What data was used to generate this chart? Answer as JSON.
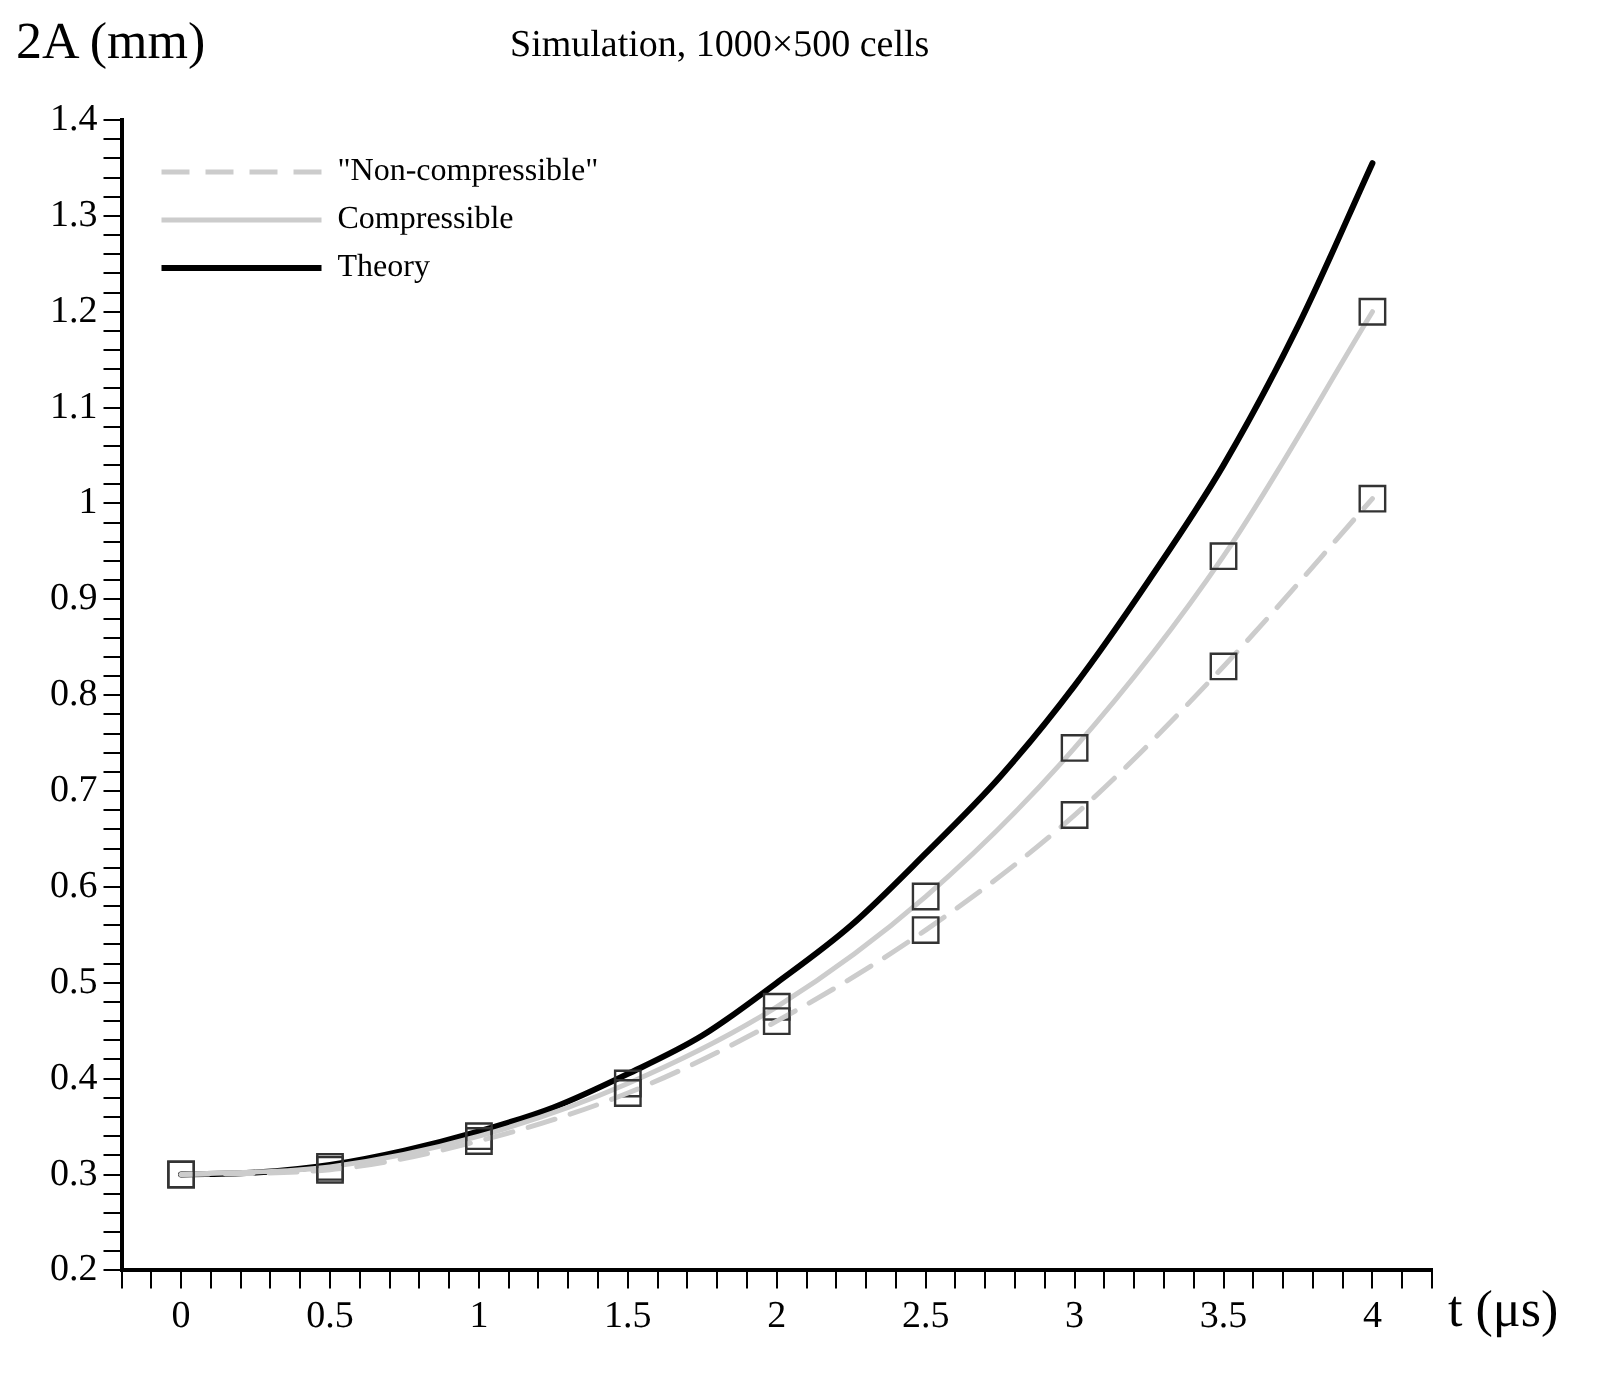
{
  "chart_data": {
    "type": "line",
    "title": "Simulation, 1000×500 cells",
    "xlabel": "t (μs)",
    "ylabel": "2A (mm)",
    "legend": "top left",
    "grid": false,
    "xlim": [
      -0.2,
      4.2
    ],
    "ylim": [
      0.2,
      1.4
    ],
    "xticks": [
      {
        "value": -0.2,
        "label": null
      },
      {
        "value": -0.1,
        "label": null
      },
      0,
      {
        "value": 0.1,
        "label": null
      },
      {
        "value": 0.2,
        "label": null
      },
      {
        "value": 0.3,
        "label": null
      },
      {
        "value": 0.4,
        "label": null
      },
      0.5,
      {
        "value": 0.6,
        "label": null
      },
      {
        "value": 0.7,
        "label": null
      },
      {
        "value": 0.8,
        "label": null
      },
      {
        "value": 0.9,
        "label": null
      },
      1,
      {
        "value": 1.1,
        "label": null
      },
      {
        "value": 1.2,
        "label": null
      },
      {
        "value": 1.3,
        "label": null
      },
      {
        "value": 1.4,
        "label": null
      },
      1.5,
      {
        "value": 1.6,
        "label": null
      },
      {
        "value": 1.7,
        "label": null
      },
      {
        "value": 1.8,
        "label": null
      },
      {
        "value": 1.9,
        "label": null
      },
      2,
      {
        "value": 2.1,
        "label": null
      },
      {
        "value": 2.2,
        "label": null
      },
      {
        "value": 2.3,
        "label": null
      },
      {
        "value": 2.4,
        "label": null
      },
      2.5,
      {
        "value": 2.6,
        "label": null
      },
      {
        "value": 2.7,
        "label": null
      },
      {
        "value": 2.8,
        "label": null
      },
      {
        "value": 2.9,
        "label": null
      },
      3,
      {
        "value": 3.1,
        "label": null
      },
      {
        "value": 3.2,
        "label": null
      },
      {
        "value": 3.3,
        "label": null
      },
      {
        "value": 3.4,
        "label": null
      },
      3.5,
      {
        "value": 3.6,
        "label": null
      },
      {
        "value": 3.7,
        "label": null
      },
      {
        "value": 3.8,
        "label": null
      },
      {
        "value": 3.9,
        "label": null
      },
      4,
      {
        "value": 4.1,
        "label": null
      },
      {
        "value": 4.2,
        "label": null
      }
    ],
    "yticks": [
      0.2,
      {
        "value": 0.22,
        "label": null
      },
      {
        "value": 0.24,
        "label": null
      },
      {
        "value": 0.26,
        "label": null
      },
      {
        "value": 0.28,
        "label": null
      },
      0.3,
      {
        "value": 0.32,
        "label": null
      },
      {
        "value": 0.34,
        "label": null
      },
      {
        "value": 0.36,
        "label": null
      },
      {
        "value": 0.38,
        "label": null
      },
      0.4,
      {
        "value": 0.42,
        "label": null
      },
      {
        "value": 0.44,
        "label": null
      },
      {
        "value": 0.46,
        "label": null
      },
      {
        "value": 0.48,
        "label": null
      },
      0.5,
      {
        "value": 0.52,
        "label": null
      },
      {
        "value": 0.54,
        "label": null
      },
      {
        "value": 0.56,
        "label": null
      },
      {
        "value": 0.58,
        "label": null
      },
      0.6,
      {
        "value": 0.62,
        "label": null
      },
      {
        "value": 0.64,
        "label": null
      },
      {
        "value": 0.66,
        "label": null
      },
      {
        "value": 0.68,
        "label": null
      },
      0.7,
      {
        "value": 0.72,
        "label": null
      },
      {
        "value": 0.74,
        "label": null
      },
      {
        "value": 0.76,
        "label": null
      },
      {
        "value": 0.78,
        "label": null
      },
      0.8,
      {
        "value": 0.82,
        "label": null
      },
      {
        "value": 0.84,
        "label": null
      },
      {
        "value": 0.86,
        "label": null
      },
      {
        "value": 0.88,
        "label": null
      },
      0.9,
      {
        "value": 0.92,
        "label": null
      },
      {
        "value": 0.94,
        "label": null
      },
      {
        "value": 0.96,
        "label": null
      },
      {
        "value": 0.98,
        "label": null
      },
      1,
      {
        "value": 1.02,
        "label": null
      },
      {
        "value": 1.04,
        "label": null
      },
      {
        "value": 1.06,
        "label": null
      },
      {
        "value": 1.08,
        "label": null
      },
      1.1,
      {
        "value": 1.12,
        "label": null
      },
      {
        "value": 1.14,
        "label": null
      },
      {
        "value": 1.16,
        "label": null
      },
      {
        "value": 1.18,
        "label": null
      },
      1.2,
      {
        "value": 1.22,
        "label": null
      },
      {
        "value": 1.24,
        "label": null
      },
      {
        "value": 1.26,
        "label": null
      },
      {
        "value": 1.28,
        "label": null
      },
      1.3,
      {
        "value": 1.32,
        "label": null
      },
      {
        "value": 1.34,
        "label": null
      },
      {
        "value": 1.36,
        "label": null
      },
      {
        "value": 1.38,
        "label": null
      },
      1.4
    ],
    "series": [
      {
        "name": "\"Non-compressible\"",
        "color": "#cccccc",
        "line_style": "dashed",
        "marker": "square",
        "x": [
          0,
          0.5,
          1,
          1.5,
          2,
          2.5,
          3,
          3.5,
          4
        ],
        "values": [
          0.3,
          0.305,
          0.335,
          0.385,
          0.46,
          0.555,
          0.675,
          0.83,
          1.005
        ]
      },
      {
        "name": "Compressible",
        "color": "#cccccc",
        "line_style": "solid",
        "marker": "square",
        "x": [
          0,
          0.5,
          1,
          1.5,
          2,
          2.5,
          3,
          3.5,
          4
        ],
        "values": [
          0.3,
          0.308,
          0.34,
          0.395,
          0.475,
          0.59,
          0.745,
          0.945,
          1.2
        ]
      },
      {
        "name": "Theory",
        "color": "#000000",
        "line_style": "solid",
        "marker": "none",
        "x": [
          0,
          0.25,
          0.5,
          0.75,
          1,
          1.25,
          1.5,
          1.75,
          2,
          2.25,
          2.5,
          2.75,
          3,
          3.25,
          3.5,
          3.75,
          4
        ],
        "values": [
          0.3,
          0.302,
          0.31,
          0.325,
          0.345,
          0.37,
          0.405,
          0.445,
          0.5,
          0.56,
          0.635,
          0.715,
          0.81,
          0.92,
          1.04,
          1.185,
          1.355
        ]
      }
    ]
  }
}
